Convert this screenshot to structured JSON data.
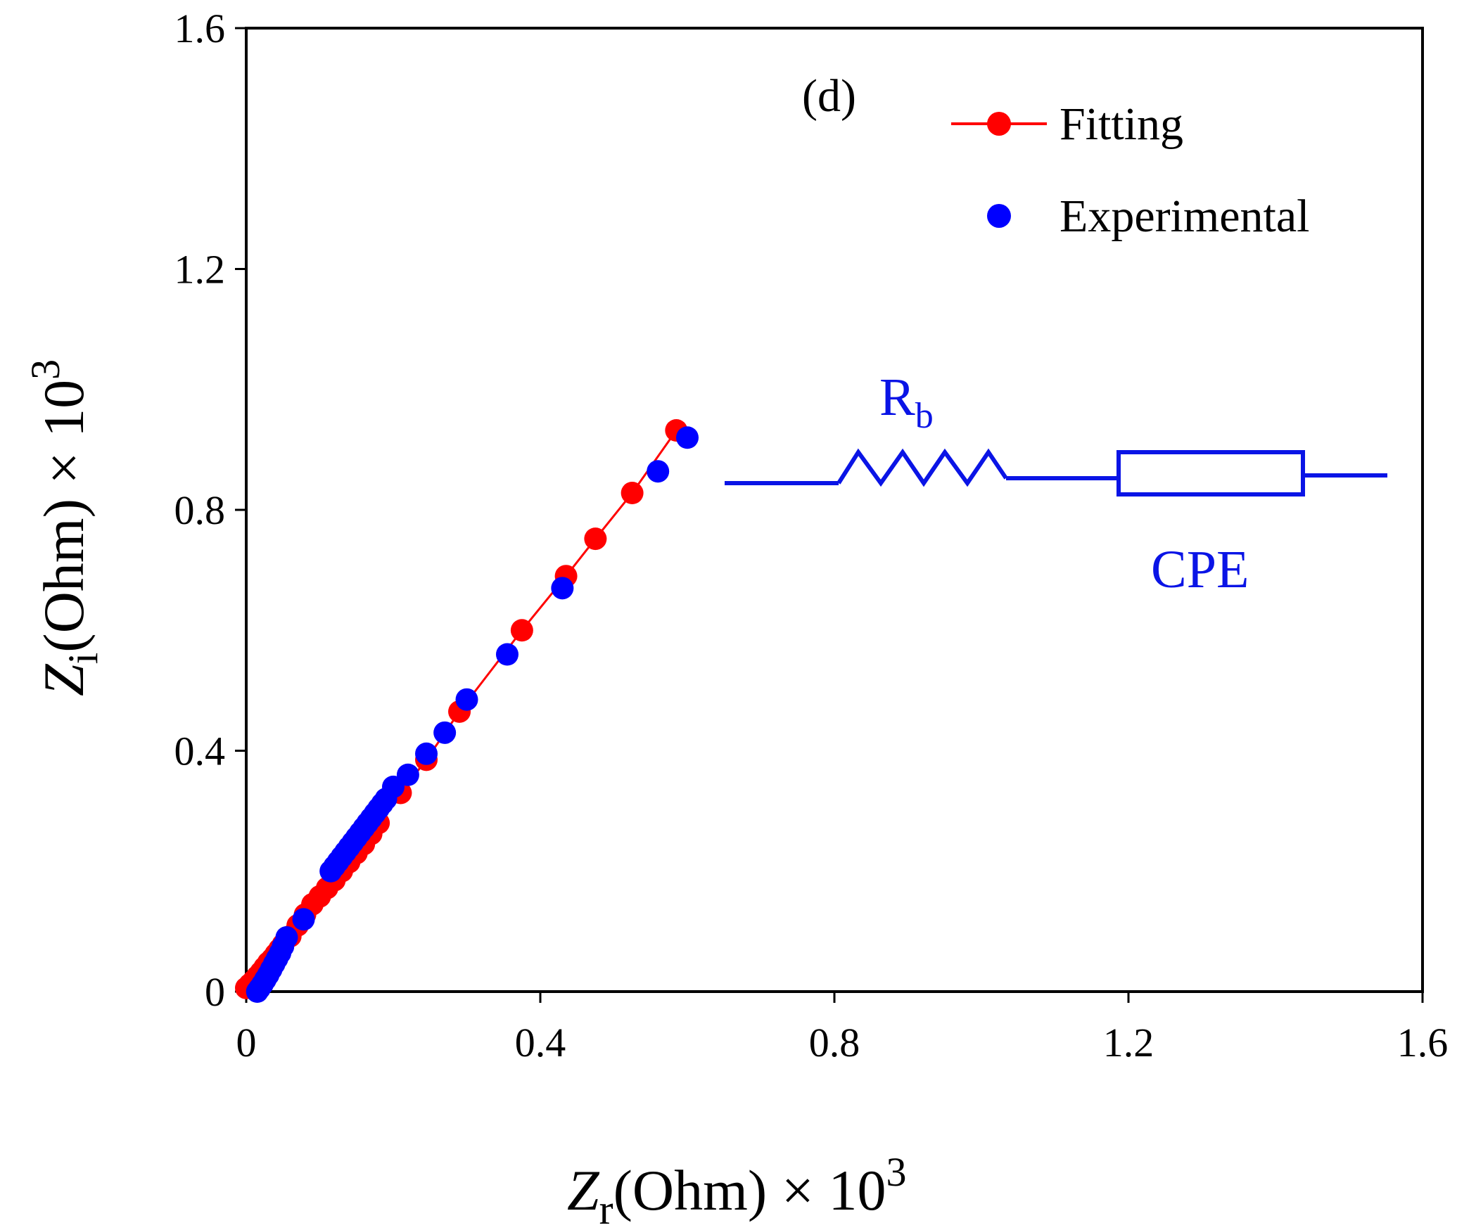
{
  "chart_data": {
    "type": "scatter",
    "panel_label": "(d)",
    "xlabel": {
      "main": "Z",
      "sub": "r",
      "rest": "(Ohm) × 10",
      "sup": "3"
    },
    "ylabel": {
      "main": "Z",
      "sub": "i",
      "rest": "(Ohm) × 10",
      "sup": "3"
    },
    "xlim": [
      0,
      1.6
    ],
    "ylim": [
      0,
      1.6
    ],
    "xticks": [
      0,
      0.4,
      0.8,
      1.2,
      1.6
    ],
    "yticks": [
      0,
      0.4,
      0.8,
      1.2,
      1.6
    ],
    "xtick_labels": [
      "0",
      "0.4",
      "0.8",
      "1.2",
      "1.6"
    ],
    "ytick_labels": [
      "0",
      "0.4",
      "0.8",
      "1.2",
      "1.6"
    ],
    "legend": {
      "position": "top-right",
      "entries": [
        "Fitting",
        "Experimental"
      ]
    },
    "colors": {
      "fitting": "#ff0000",
      "experimental": "#0000ff",
      "circuit": "#0a14e6",
      "axis": "#000000"
    },
    "series": [
      {
        "name": "Fitting",
        "style": "line+markers",
        "x": [
          0.0,
          0.005,
          0.01,
          0.015,
          0.02,
          0.025,
          0.03,
          0.035,
          0.04,
          0.045,
          0.05,
          0.06,
          0.07,
          0.08,
          0.09,
          0.1,
          0.11,
          0.12,
          0.13,
          0.14,
          0.15,
          0.16,
          0.17,
          0.18,
          0.21,
          0.245,
          0.29,
          0.375,
          0.435,
          0.475,
          0.525,
          0.585
        ],
        "y": [
          0.006,
          0.012,
          0.018,
          0.025,
          0.032,
          0.04,
          0.048,
          0.054,
          0.062,
          0.07,
          0.078,
          0.092,
          0.11,
          0.128,
          0.145,
          0.158,
          0.172,
          0.185,
          0.2,
          0.215,
          0.23,
          0.245,
          0.262,
          0.28,
          0.33,
          0.385,
          0.465,
          0.6,
          0.69,
          0.752,
          0.828,
          0.932
        ]
      },
      {
        "name": "Experimental",
        "style": "markers",
        "x": [
          0.015,
          0.018,
          0.022,
          0.026,
          0.03,
          0.034,
          0.038,
          0.042,
          0.046,
          0.05,
          0.055,
          0.078,
          0.115,
          0.12,
          0.125,
          0.13,
          0.135,
          0.14,
          0.145,
          0.15,
          0.155,
          0.16,
          0.165,
          0.17,
          0.175,
          0.18,
          0.185,
          0.19,
          0.2,
          0.22,
          0.245,
          0.27,
          0.3,
          0.355,
          0.43,
          0.56,
          0.6
        ],
        "y": [
          0.0,
          0.005,
          0.012,
          0.02,
          0.028,
          0.037,
          0.046,
          0.055,
          0.064,
          0.075,
          0.09,
          0.12,
          0.2,
          0.208,
          0.216,
          0.224,
          0.232,
          0.24,
          0.248,
          0.256,
          0.264,
          0.272,
          0.28,
          0.288,
          0.296,
          0.304,
          0.312,
          0.32,
          0.34,
          0.36,
          0.395,
          0.43,
          0.485,
          0.56,
          0.67,
          0.864,
          0.92
        ]
      }
    ]
  },
  "circuit": {
    "resistor_label": {
      "main": "R",
      "sub": "b"
    },
    "cpe_label": "CPE"
  }
}
